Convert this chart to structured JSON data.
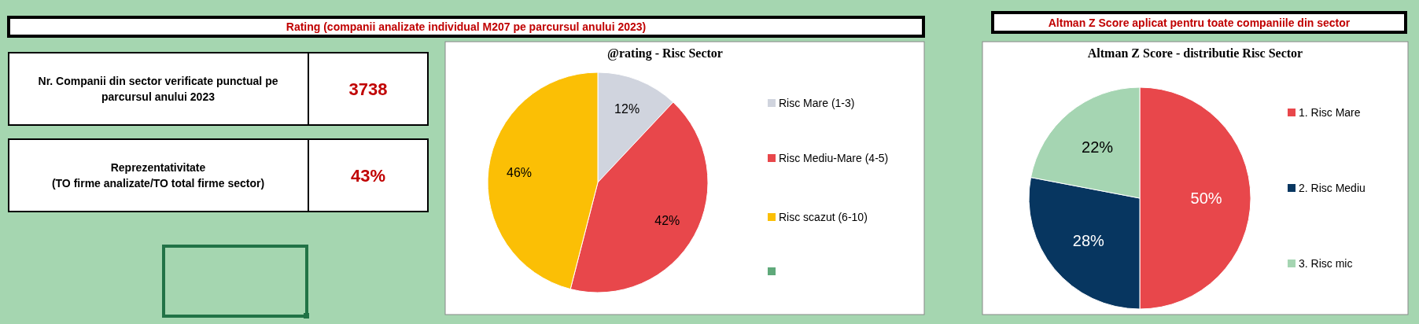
{
  "chart_data": [
    {
      "type": "other",
      "title": "Rating (companii analizate individual M207 pe parcursul anului 2023)",
      "annotations": [
        "Nr. Companii din sector verificate punctual pe\nparcursul anului 2023",
        "3738",
        "Reprezentativitate\n(TO firme analizate/TO total firme sector)",
        "43%"
      ]
    },
    {
      "type": "pie",
      "title": "@rating  - Risc Sector",
      "categories": [
        "Risc Mare (1-3)",
        "Risc Mediu-Mare (4-5)",
        "Risc scazut (6-10)",
        null
      ],
      "values": [
        12,
        42,
        46,
        0
      ],
      "colors": [
        "#d0d4de",
        "#e8474b",
        "#fbbf05",
        "#5fa97a"
      ],
      "value_labels": [
        "12%",
        "42%",
        "46%",
        null
      ],
      "legend": "right"
    },
    {
      "type": "pie",
      "title": "Altman Z Score aplicat pentru toate companiile din sector",
      "subtitle": "Altman Z Score - distributie Risc Sector",
      "categories": [
        "1. Risc Mare",
        "2. Risc Mediu",
        "3. Risc mic"
      ],
      "values": [
        50,
        28,
        22
      ],
      "colors": [
        "#e8474b",
        "#073660",
        "#a5d5b2"
      ],
      "value_labels": [
        "50%",
        "28%",
        "22%"
      ],
      "legend": "right"
    }
  ]
}
